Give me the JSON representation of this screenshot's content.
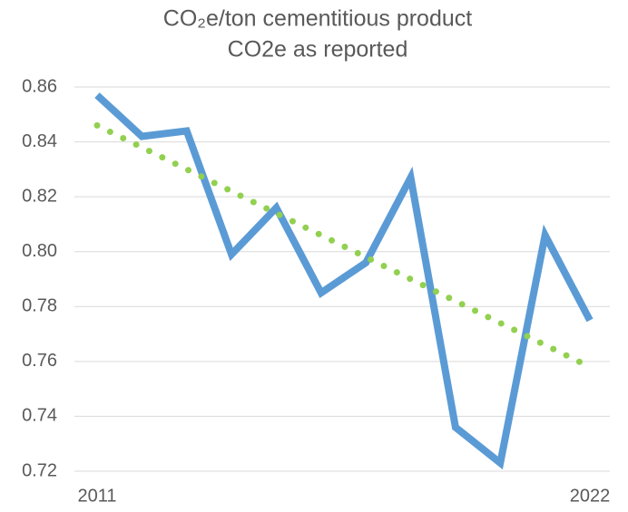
{
  "chart_data": {
    "type": "line",
    "title": "CO₂e/ton cementitious product",
    "subtitle": "CO2e as reported",
    "categories": [
      "2011",
      null,
      null,
      null,
      null,
      null,
      null,
      null,
      null,
      null,
      null,
      "2022"
    ],
    "series": [
      {
        "color": "#5b9bd5",
        "style": "solid",
        "values": [
          0.857,
          0.842,
          0.844,
          0.799,
          0.816,
          0.785,
          0.796,
          0.827,
          0.736,
          0.723,
          0.806,
          0.775
        ]
      },
      {
        "color": "#92d050",
        "style": "dotted",
        "values": [
          0.846,
          0.838,
          0.83,
          0.822,
          0.814,
          0.806,
          0.798,
          0.79,
          0.782,
          0.774,
          0.766,
          0.758
        ]
      }
    ],
    "ylim": [
      0.72,
      0.86
    ],
    "yticks": [
      0.72,
      0.74,
      0.76,
      0.78,
      {
        "value": 0.8,
        "label": "0.80"
      },
      0.82,
      0.84,
      0.86
    ],
    "grid": true
  }
}
